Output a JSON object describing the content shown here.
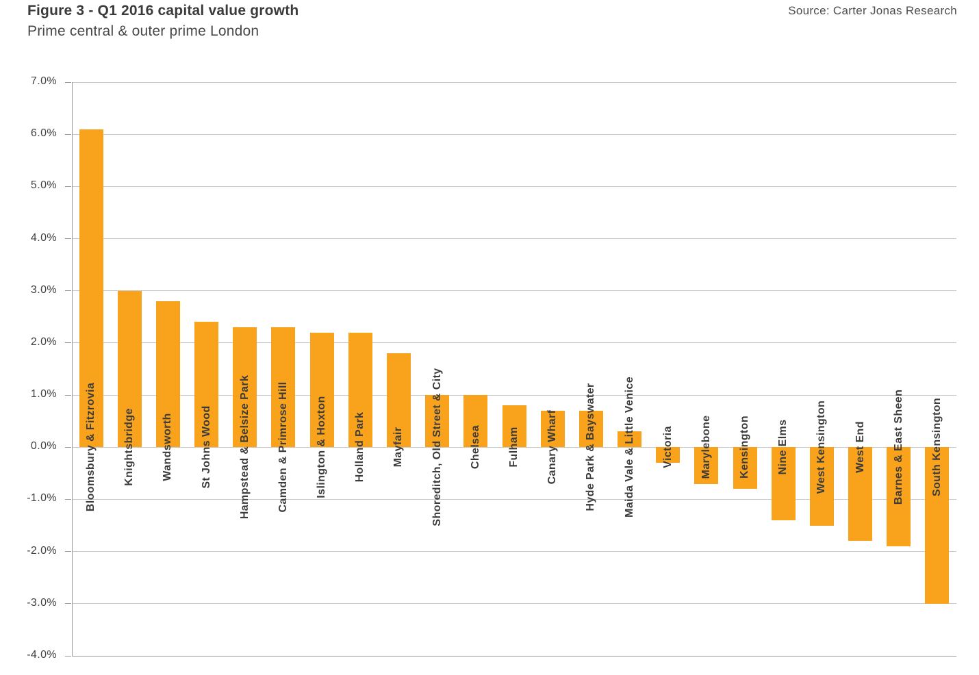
{
  "header": {
    "title": "Figure 3 - Q1 2016 capital value growth",
    "subtitle": "Prime central & outer prime London",
    "source": "Source: Carter Jonas Research"
  },
  "chart_data": {
    "type": "bar",
    "title": "Figure 3 - Q1 2016 capital value growth",
    "subtitle": "Prime central & outer prime London",
    "source": "Source: Carter Jonas Research",
    "categories": [
      "Bloomsbury & Fitzrovia",
      "Knightsbridge",
      "Wandsworth",
      "St Johns Wood",
      "Hampstead & Belsize Park",
      "Camden & Primrose Hill",
      "Islington & Hoxton",
      "Holland Park",
      "Mayfair",
      "Shoreditch, Old Street & City",
      "Chelsea",
      "Fulham",
      "Canary Wharf",
      "Hyde Park & Bayswater",
      "Maida Vale & Little Venice",
      "Victoria",
      "Marylebone",
      "Kensington",
      "Nine Elms",
      "West Kensington",
      "West End",
      "Barnes & East Sheen",
      "South Kensington"
    ],
    "values": [
      6.1,
      3.0,
      2.8,
      2.4,
      2.3,
      2.3,
      2.2,
      2.2,
      1.8,
      1.0,
      1.0,
      0.8,
      0.7,
      0.7,
      0.3,
      -0.3,
      -0.7,
      -0.8,
      -1.4,
      -1.5,
      -1.8,
      -1.9,
      -3.0
    ],
    "value_unit": "%",
    "xlabel": "",
    "ylabel": "",
    "ylim": [
      -4.0,
      7.0
    ],
    "ytick_step": 1.0,
    "ytick_labels": [
      "7.0%",
      "6.0%",
      "5.0%",
      "4.0%",
      "3.0%",
      "2.0%",
      "1.0%",
      "0.0%",
      "-1.0%",
      "-2.0%",
      "-3.0%",
      "-4.0%"
    ],
    "grid": true,
    "legend_position": "none",
    "bar_color": "#f9a21c",
    "label_color": "#3c3c3d",
    "gridline_color": "#c8c8c8",
    "axis_color": "#9a9a9a"
  }
}
